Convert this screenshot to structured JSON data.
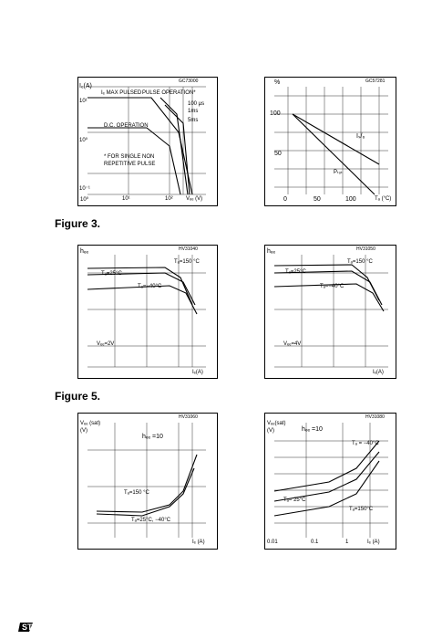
{
  "labels": {
    "figure3": "Figure 3.",
    "figure5": "Figure 5."
  },
  "panels": {
    "p1": {
      "code": "GC73000",
      "ylabel": "Iₑ(A)",
      "xlabel": "Vₑₑ (V)",
      "ticks_y": [
        "10¹",
        "10⁰",
        "10⁻¹"
      ],
      "ticks_x": [
        "10⁰",
        "10¹",
        "10²"
      ],
      "ann_max_pulsed": "Iₑ MAX PULSED",
      "ann_pulse_op": "PULSE OPERATION*",
      "ann_100us": "100 μs",
      "ann_1ms": "1ms",
      "ann_5ms": "5ms",
      "ann_dc": "D.C. OPERATION",
      "ann_single1": "* FOR SINGLE NON",
      "ann_single2": "REPETITIVE PULSE"
    },
    "p2": {
      "code": "GC57281",
      "ylabel": "%",
      "ticks_y": [
        "100",
        "50"
      ],
      "ticks_x": [
        "0",
        "50",
        "100"
      ],
      "xlabel": "Tₐ (°C)",
      "series_sb": "Iₛ/₆",
      "series_ptot": "Pₜₒₜ"
    },
    "p3": {
      "code": "HV31040",
      "ylabel": "hₑₑ",
      "t150": "Tₐ=150 °C",
      "t25": "Tₐ=25°C",
      "tm40": "Tₐ=−40°C",
      "vce": "Vₑₑ=2V",
      "xlabel": "Iₑ(A)",
      "ticks_y": [
        "10¹",
        "10⁰",
        "10⁻¹",
        "10⁻²",
        "10⁻³"
      ]
    },
    "p4": {
      "code": "HV31050",
      "ylabel": "hₑₑ",
      "t150": "Tₐ=150 °C",
      "t25": "Tₐ=25°C",
      "tm40": "Tₐ=−40°C",
      "vce": "Vₑₑ=4V",
      "xlabel": "Iₑ(A)",
      "ticks_y": [
        "10¹",
        "10⁰",
        "10⁻¹",
        "10⁻²",
        "10⁻³"
      ]
    },
    "p5": {
      "code": "HV31060",
      "ylabel1": "Vₑₑ (sat)",
      "ylabel2": "(V)",
      "hfe": "hₑₑ =10",
      "t150": "Tₐ=150 °C",
      "t25": "Tₐ=25°C, −40°C",
      "xlabel": "Iₑ (A)",
      "ticks_y": [
        "10⁰",
        "10⁻¹",
        "10⁻²"
      ]
    },
    "p6": {
      "code": "HV31080",
      "ylabel1": "Vₑₑ(sat)",
      "ylabel2": "(V)",
      "hfe": "hₑₑ =10",
      "tm40": "Tₐ = −40°C",
      "t25": "Tₐ= 25°C",
      "t150": "Tₐ=150°C",
      "ticks_y": [
        "1.4",
        "1.2",
        "1",
        "0.8",
        "0.6",
        "0.4",
        "0.2"
      ],
      "ticks_x": [
        "0.01",
        "0.1",
        "1"
      ],
      "xlabel": "Iₑ (A)"
    }
  },
  "chart_data": [
    {
      "type": "line",
      "x": [
        1,
        10,
        60,
        100
      ],
      "series": [
        {
          "values": [
            10,
            10,
            2,
            0.3
          ]
        }
      ]
    },
    {
      "type": "line",
      "x": [
        0,
        25,
        150
      ],
      "series": [
        {
          "name": "Iₛ/₆",
          "values": [
            100,
            100,
            45
          ]
        },
        {
          "name": "Pₜₒₜ",
          "values": [
            100,
            100,
            0
          ]
        }
      ]
    }
  ]
}
